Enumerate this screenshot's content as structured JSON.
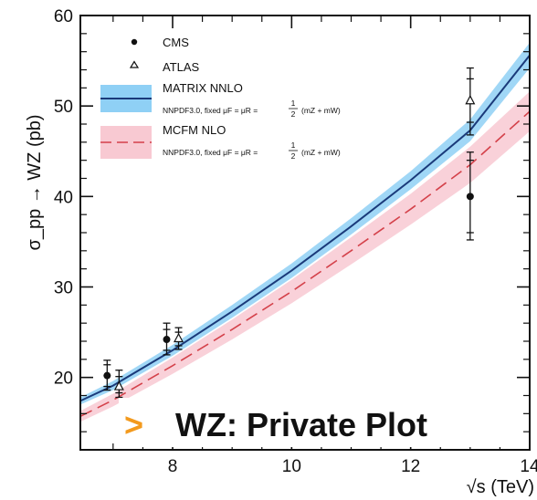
{
  "chart_data": {
    "type": "line",
    "xlabel": "√s (TeV)",
    "ylabel": "σ_pp → WZ (pb)",
    "xlim": [
      6.45,
      14.0
    ],
    "ylim": [
      12.0,
      60.0
    ],
    "x_ticks": [
      8,
      10,
      12,
      14
    ],
    "x_tick_labels": [
      "8",
      "10",
      "12",
      "14"
    ],
    "y_ticks": [
      20,
      30,
      40,
      50,
      60
    ],
    "y_tick_labels": [
      "20",
      "30",
      "40",
      "50",
      "60"
    ],
    "grid": false,
    "legend_position": "top-left",
    "series": [
      {
        "name": "MATRIX NNLO",
        "description": "NNPDF3.0, fixed μF = μR = 1/2 (mZ + mW)",
        "style": "solid",
        "color": "#1a3a7a",
        "band_color": "#8fd0f5",
        "x": [
          6.45,
          7,
          8,
          9,
          10,
          11,
          12,
          13,
          14
        ],
        "y": [
          17.4,
          19.1,
          23.0,
          27.3,
          31.8,
          36.7,
          41.8,
          47.3,
          55.6
        ],
        "band_upper": [
          17.8,
          19.6,
          23.6,
          28.0,
          32.6,
          37.6,
          42.8,
          48.5,
          57.0
        ],
        "band_lower": [
          17.0,
          18.6,
          22.4,
          26.6,
          31.0,
          35.8,
          40.8,
          46.1,
          54.2
        ]
      },
      {
        "name": "MCFM NLO",
        "description": "NNPDF3.0, fixed μF = μR = 1/2 (mZ + mW)",
        "style": "dashed",
        "color": "#d4414a",
        "band_color": "#f8c9d2",
        "x": [
          6.45,
          7,
          8,
          9,
          10,
          11,
          12,
          13,
          14
        ],
        "y": [
          15.7,
          17.5,
          21.3,
          25.3,
          29.5,
          34.0,
          38.6,
          43.5,
          49.4
        ],
        "band_upper": [
          16.3,
          18.2,
          22.2,
          26.4,
          30.8,
          35.5,
          40.3,
          45.5,
          51.6
        ],
        "band_lower": [
          15.1,
          16.8,
          20.4,
          24.2,
          28.2,
          32.5,
          36.9,
          41.5,
          47.2
        ]
      },
      {
        "name": "CMS",
        "style": "marker",
        "marker": "filled-circle",
        "color": "#111111",
        "points": [
          {
            "x": 6.9,
            "y": 20.2,
            "stat_low": 19.0,
            "stat_high": 21.4,
            "tot_low": 18.6,
            "tot_high": 21.9
          },
          {
            "x": 7.9,
            "y": 24.2,
            "stat_low": 23.0,
            "stat_high": 25.3,
            "tot_low": 22.5,
            "tot_high": 26.0
          },
          {
            "x": 13.0,
            "y": 40.0,
            "stat_low": 36.0,
            "stat_high": 44.0,
            "tot_low": 35.2,
            "tot_high": 44.9
          }
        ]
      },
      {
        "name": "ATLAS",
        "style": "marker",
        "marker": "open-triangle",
        "color": "#111111",
        "points": [
          {
            "x": 7.1,
            "y": 19.0,
            "stat_low": 18.3,
            "stat_high": 20.1,
            "tot_low": 17.8,
            "tot_high": 20.8
          },
          {
            "x": 8.1,
            "y": 24.3,
            "stat_low": 23.5,
            "stat_high": 25.0,
            "tot_low": 23.1,
            "tot_high": 25.5
          },
          {
            "x": 13.0,
            "y": 50.6,
            "stat_low": 48.2,
            "stat_high": 53.0,
            "tot_low": 46.8,
            "tot_high": 54.2
          }
        ]
      }
    ],
    "legend": {
      "entries": [
        {
          "label": "CMS",
          "marker": "filled-circle"
        },
        {
          "label": "ATLAS",
          "marker": "open-triangle"
        },
        {
          "label": "MATRIX NNLO",
          "sublabel_prefix": "NNPDF3.0, fixed μF = μR = ",
          "sublabel_suffix": "(mZ + mW)",
          "style": "solid-band-blue"
        },
        {
          "label": "MCFM NLO",
          "sublabel_prefix": "NNPDF3.0, fixed μF = μR = ",
          "sublabel_suffix": "(mZ + mW)",
          "style": "dashed-band-pink"
        }
      ],
      "fraction_num": "1",
      "fraction_den": "2"
    },
    "overlay_text": {
      "arrow": ">",
      "label": "WZ: Private Plot",
      "arrow_color": "#f39a1e"
    }
  }
}
